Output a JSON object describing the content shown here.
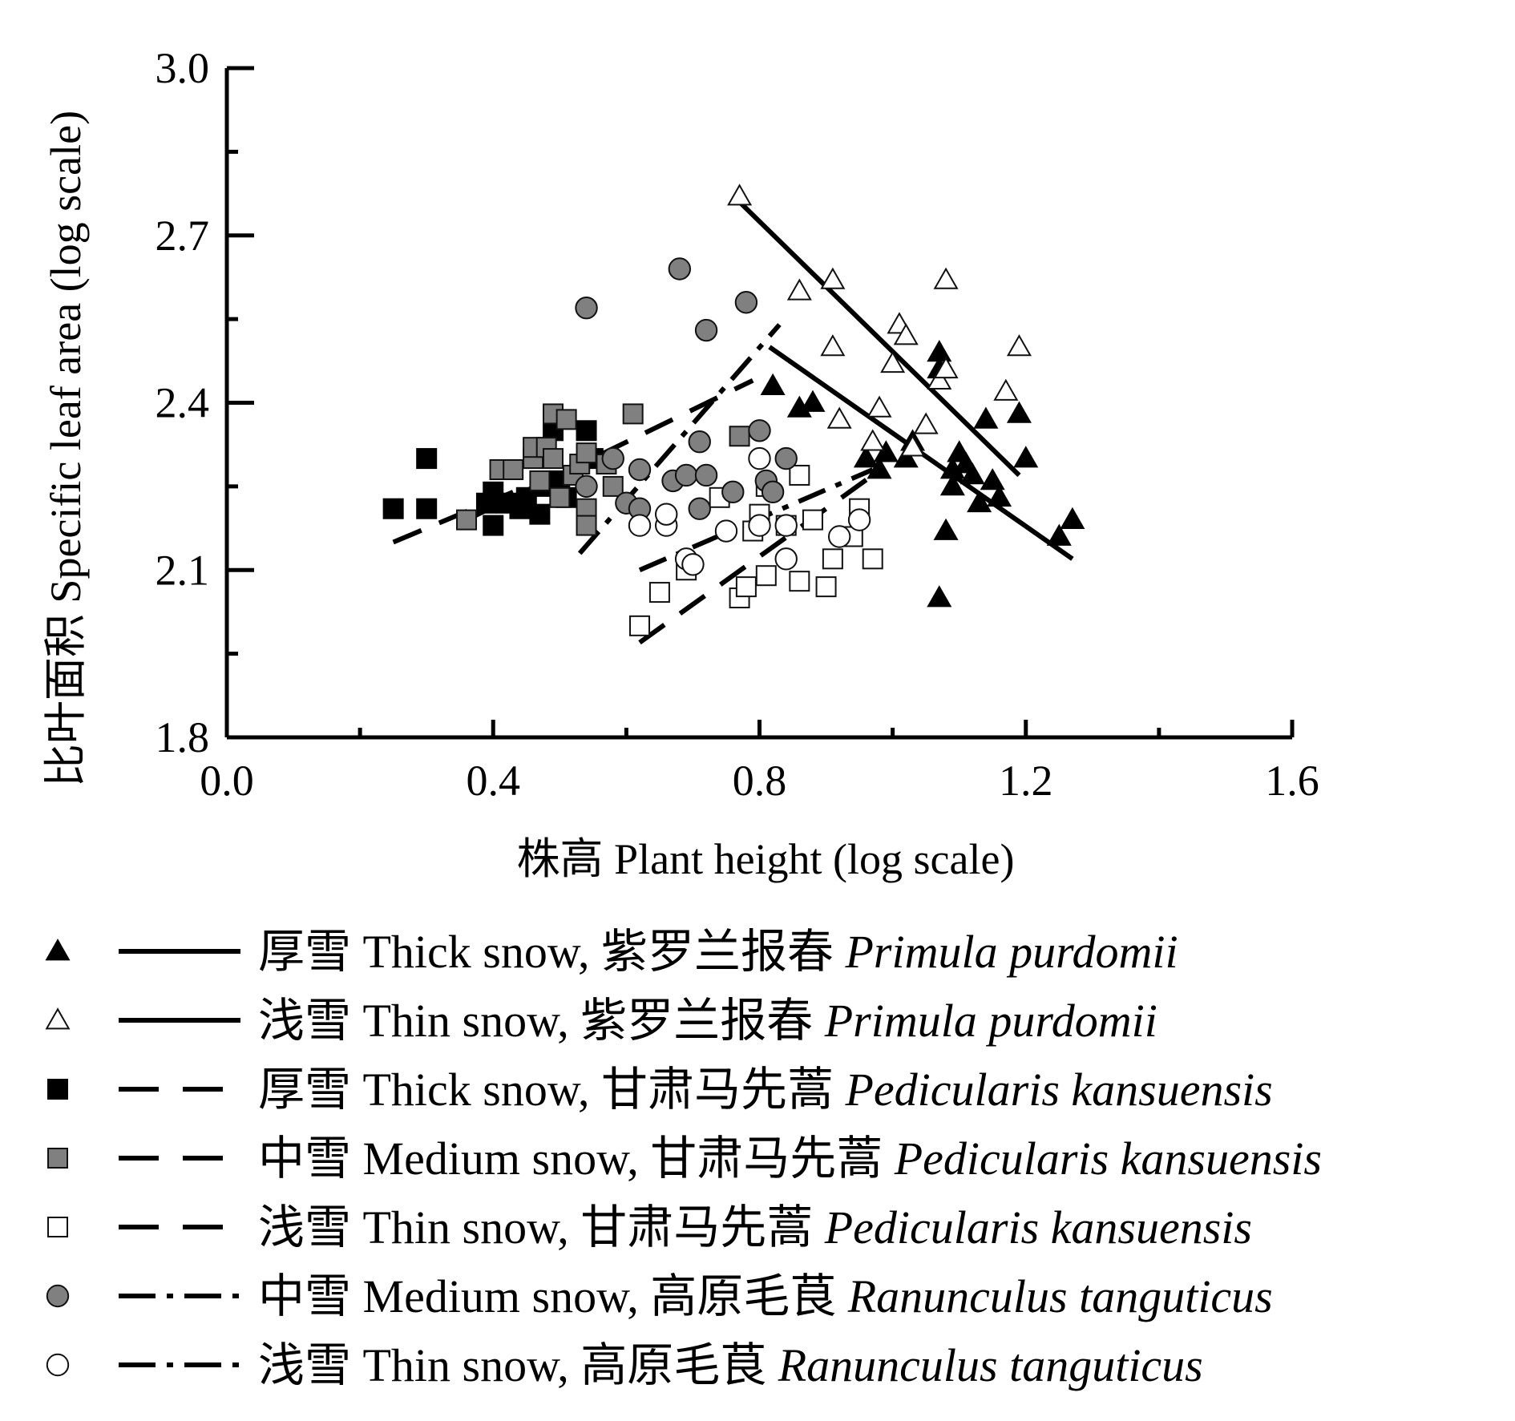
{
  "chart_data": {
    "type": "scatter",
    "xlabel": "株高 Plant height (log scale)",
    "ylabel": "比叶面积 Specific leaf area (log scale)",
    "xlim": [
      0.0,
      1.6
    ],
    "ylim": [
      1.8,
      3.0
    ],
    "x_ticks": [
      "0.0",
      "0.4",
      "0.8",
      "1.2",
      "1.6"
    ],
    "x_tick_values": [
      0.0,
      0.4,
      0.8,
      1.2,
      1.6
    ],
    "y_ticks": [
      "1.8",
      "2.1",
      "2.4",
      "2.7",
      "3.0"
    ],
    "y_tick_values": [
      1.8,
      2.1,
      2.4,
      2.7,
      3.0
    ],
    "grid": false,
    "legend_position": "bottom",
    "series": [
      {
        "id": "thick-primula",
        "name": "厚雪 Thick snow, 紫罗兰报春",
        "species": "Primula purdomii",
        "marker": "triangle",
        "fill": "#000000",
        "line_style": "solid",
        "fit": [
          [
            0.815,
            2.5
          ],
          [
            1.27,
            2.12
          ]
        ],
        "points": [
          [
            0.82,
            2.43
          ],
          [
            0.86,
            2.39
          ],
          [
            0.88,
            2.4
          ],
          [
            0.96,
            2.3
          ],
          [
            0.98,
            2.28
          ],
          [
            0.99,
            2.31
          ],
          [
            1.02,
            2.3
          ],
          [
            1.03,
            2.33
          ],
          [
            1.07,
            2.49
          ],
          [
            1.07,
            2.46
          ],
          [
            1.08,
            2.17
          ],
          [
            1.07,
            2.05
          ],
          [
            1.09,
            2.28
          ],
          [
            1.09,
            2.25
          ],
          [
            1.1,
            2.31
          ],
          [
            1.11,
            2.29
          ],
          [
            1.12,
            2.27
          ],
          [
            1.13,
            2.22
          ],
          [
            1.14,
            2.37
          ],
          [
            1.15,
            2.26
          ],
          [
            1.16,
            2.23
          ],
          [
            1.19,
            2.38
          ],
          [
            1.2,
            2.3
          ],
          [
            1.25,
            2.16
          ],
          [
            1.27,
            2.19
          ]
        ]
      },
      {
        "id": "thin-primula",
        "name": "浅雪 Thin snow, 紫罗兰报春",
        "species": "Primula purdomii",
        "marker": "triangle",
        "fill": "#ffffff",
        "line_style": "solid",
        "fit": [
          [
            0.77,
            2.76
          ],
          [
            1.19,
            2.27
          ]
        ],
        "points": [
          [
            0.77,
            2.77
          ],
          [
            0.86,
            2.6
          ],
          [
            0.91,
            2.62
          ],
          [
            0.91,
            2.5
          ],
          [
            0.92,
            2.37
          ],
          [
            0.97,
            2.33
          ],
          [
            0.98,
            2.39
          ],
          [
            1.0,
            2.47
          ],
          [
            1.01,
            2.54
          ],
          [
            1.02,
            2.52
          ],
          [
            1.03,
            2.32
          ],
          [
            1.05,
            2.36
          ],
          [
            1.07,
            2.44
          ],
          [
            1.08,
            2.46
          ],
          [
            1.08,
            2.62
          ],
          [
            1.17,
            2.42
          ],
          [
            1.19,
            2.5
          ]
        ]
      },
      {
        "id": "thick-pedicularis",
        "name": "厚雪 Thick snow, 甘肃马先蒿",
        "species": "Pedicularis kansuensis",
        "marker": "square",
        "fill": "#000000",
        "line_style": "dashed",
        "fit": [
          [
            0.25,
            2.15
          ],
          [
            0.57,
            2.31
          ]
        ],
        "points": [
          [
            0.25,
            2.21
          ],
          [
            0.3,
            2.21
          ],
          [
            0.3,
            2.3
          ],
          [
            0.39,
            2.22
          ],
          [
            0.4,
            2.18
          ],
          [
            0.4,
            2.24
          ],
          [
            0.42,
            2.22
          ],
          [
            0.44,
            2.21
          ],
          [
            0.45,
            2.23
          ],
          [
            0.47,
            2.2
          ],
          [
            0.48,
            2.25
          ],
          [
            0.49,
            2.35
          ],
          [
            0.5,
            2.26
          ],
          [
            0.51,
            2.23
          ],
          [
            0.54,
            2.35
          ],
          [
            0.55,
            2.3
          ]
        ]
      },
      {
        "id": "medium-pedicularis",
        "name": "中雪 Medium snow, 甘肃马先蒿",
        "species": "Pedicularis kansuensis",
        "marker": "square",
        "fill": "#808080",
        "line_style": "dashed",
        "fit": [
          [
            0.36,
            2.19
          ],
          [
            0.79,
            2.44
          ]
        ],
        "points": [
          [
            0.36,
            2.19
          ],
          [
            0.41,
            2.28
          ],
          [
            0.43,
            2.28
          ],
          [
            0.46,
            2.3
          ],
          [
            0.46,
            2.32
          ],
          [
            0.47,
            2.26
          ],
          [
            0.48,
            2.32
          ],
          [
            0.49,
            2.38
          ],
          [
            0.49,
            2.3
          ],
          [
            0.5,
            2.23
          ],
          [
            0.51,
            2.37
          ],
          [
            0.52,
            2.27
          ],
          [
            0.53,
            2.29
          ],
          [
            0.54,
            2.31
          ],
          [
            0.54,
            2.21
          ],
          [
            0.54,
            2.18
          ],
          [
            0.57,
            2.29
          ],
          [
            0.58,
            2.25
          ],
          [
            0.61,
            2.38
          ],
          [
            0.77,
            2.34
          ]
        ]
      },
      {
        "id": "thin-pedicularis",
        "name": "浅雪 Thin snow, 甘肃马先蒿",
        "species": "Pedicularis kansuensis",
        "marker": "square",
        "fill": "#ffffff",
        "line_style": "dashed",
        "fit": [
          [
            0.62,
            1.97
          ],
          [
            0.97,
            2.27
          ]
        ],
        "points": [
          [
            0.62,
            2.0
          ],
          [
            0.65,
            2.06
          ],
          [
            0.69,
            2.1
          ],
          [
            0.74,
            2.23
          ],
          [
            0.77,
            2.05
          ],
          [
            0.78,
            2.07
          ],
          [
            0.79,
            2.17
          ],
          [
            0.8,
            2.2
          ],
          [
            0.81,
            2.25
          ],
          [
            0.81,
            2.09
          ],
          [
            0.84,
            2.18
          ],
          [
            0.86,
            2.27
          ],
          [
            0.86,
            2.08
          ],
          [
            0.88,
            2.19
          ],
          [
            0.9,
            2.07
          ],
          [
            0.91,
            2.12
          ],
          [
            0.94,
            2.16
          ],
          [
            0.95,
            2.21
          ],
          [
            0.97,
            2.12
          ]
        ]
      },
      {
        "id": "medium-ranunculus",
        "name": "中雪 Medium snow, 高原毛茛",
        "species": "Ranunculus tanguticus",
        "marker": "circle",
        "fill": "#808080",
        "line_style": "dashdot",
        "fit": [
          [
            0.53,
            2.13
          ],
          [
            0.83,
            2.54
          ]
        ],
        "points": [
          [
            0.54,
            2.57
          ],
          [
            0.54,
            2.25
          ],
          [
            0.58,
            2.3
          ],
          [
            0.6,
            2.22
          ],
          [
            0.62,
            2.28
          ],
          [
            0.62,
            2.21
          ],
          [
            0.67,
            2.26
          ],
          [
            0.68,
            2.64
          ],
          [
            0.69,
            2.27
          ],
          [
            0.71,
            2.33
          ],
          [
            0.71,
            2.21
          ],
          [
            0.72,
            2.53
          ],
          [
            0.72,
            2.27
          ],
          [
            0.76,
            2.24
          ],
          [
            0.78,
            2.58
          ],
          [
            0.8,
            2.35
          ],
          [
            0.81,
            2.26
          ],
          [
            0.82,
            2.24
          ],
          [
            0.84,
            2.3
          ]
        ]
      },
      {
        "id": "thin-ranunculus",
        "name": "浅雪 Thin snow, 高原毛茛",
        "species": "Ranunculus tanguticus",
        "marker": "circle",
        "fill": "#ffffff",
        "line_style": "dashdot",
        "fit": [
          [
            0.62,
            2.1
          ],
          [
            0.97,
            2.28
          ]
        ],
        "points": [
          [
            0.62,
            2.18
          ],
          [
            0.66,
            2.18
          ],
          [
            0.66,
            2.2
          ],
          [
            0.69,
            2.12
          ],
          [
            0.7,
            2.11
          ],
          [
            0.75,
            2.17
          ],
          [
            0.8,
            2.3
          ],
          [
            0.8,
            2.18
          ],
          [
            0.84,
            2.12
          ],
          [
            0.84,
            2.18
          ],
          [
            0.92,
            2.16
          ],
          [
            0.95,
            2.19
          ]
        ]
      }
    ]
  },
  "legend": {
    "items": [
      {
        "series": "thick-primula",
        "label": "厚雪  Thick snow, 紫罗兰报春 ",
        "species": "Primula purdomii"
      },
      {
        "series": "thin-primula",
        "label": "浅雪  Thin snow, 紫罗兰报春 ",
        "species": "Primula purdomii"
      },
      {
        "series": "thick-pedicularis",
        "label": "厚雪  Thick snow, 甘肃马先蒿 ",
        "species": "Pedicularis kansuensis"
      },
      {
        "series": "medium-pedicularis",
        "label": "中雪  Medium snow, 甘肃马先蒿 ",
        "species": "Pedicularis kansuensis"
      },
      {
        "series": "thin-pedicularis",
        "label": "浅雪  Thin snow, 甘肃马先蒿  ",
        "species": "Pedicularis kansuensis"
      },
      {
        "series": "medium-ranunculus",
        "label": "中雪  Medium snow, 高原毛茛 ",
        "species": "Ranunculus tanguticus"
      },
      {
        "series": "thin-ranunculus",
        "label": "浅雪  Thin snow, 高原毛茛 ",
        "species": "Ranunculus tanguticus"
      }
    ]
  }
}
